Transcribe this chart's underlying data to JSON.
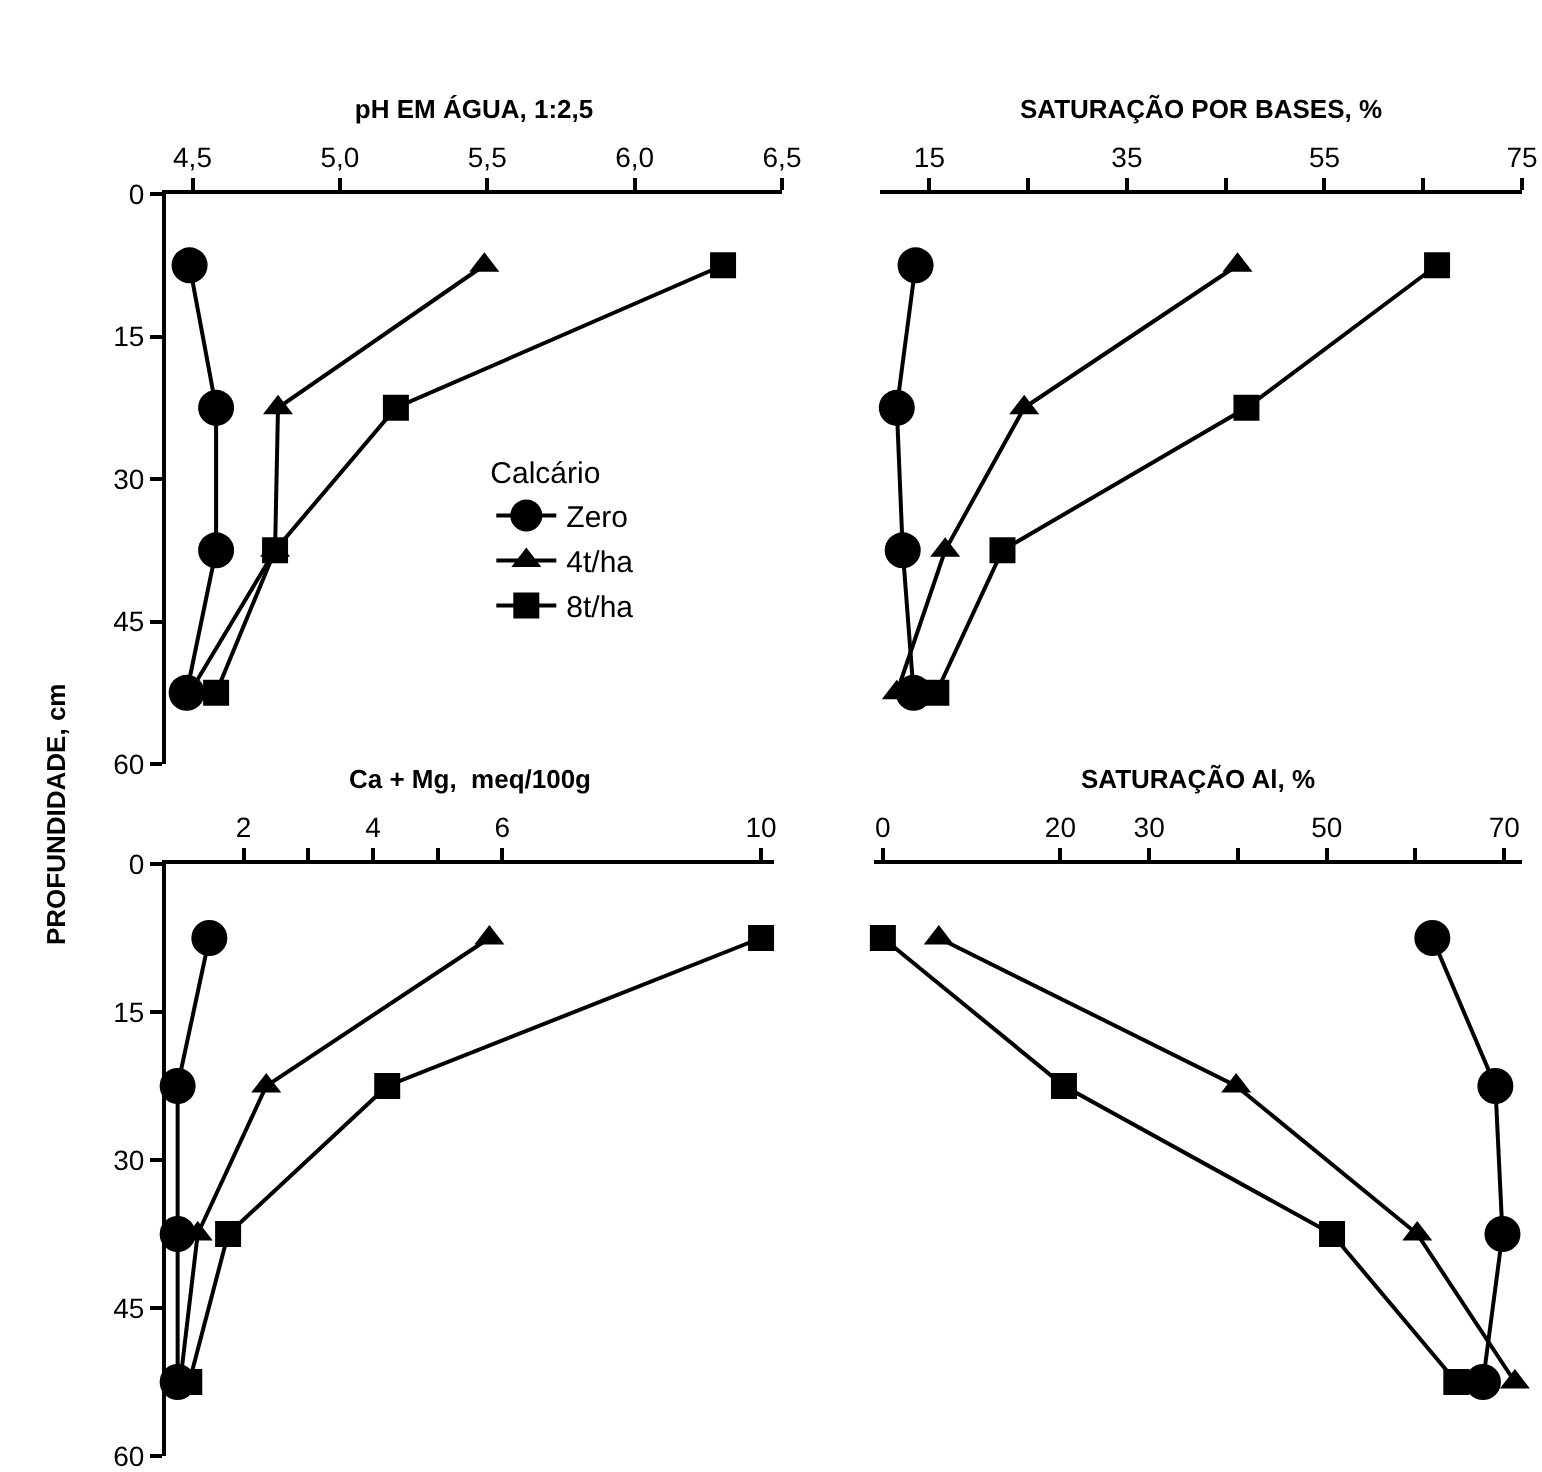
{
  "chart_data": [
    {
      "type": "line",
      "xlabel": "pH EM ÁGUA, 1:2,5",
      "ylabel": "PROFUNDIDADE, cm",
      "legend": "bottom right",
      "legend_title": "Calcário",
      "line_style": "solid",
      "xlim": [
        4.41,
        6.5
      ],
      "xticks": [
        {
          "value": 4.5,
          "label": "4,5"
        },
        {
          "value": 5.0,
          "label": "5,0"
        },
        {
          "value": 5.5,
          "label": "5,5"
        },
        {
          "value": 6.0,
          "label": "6,0"
        },
        {
          "value": 6.5,
          "label": "6,5"
        }
      ],
      "ylim": [
        60,
        0
      ],
      "yticks": [
        0,
        15,
        30,
        45,
        60
      ],
      "series": [
        {
          "name": "Zero",
          "color": "#000000",
          "marker": "circle",
          "x": [
            4.49,
            4.58,
            4.58,
            4.48
          ],
          "values": [
            7.5,
            22.5,
            37.5,
            52.5
          ]
        },
        {
          "name": "4t/ha",
          "color": "#000000",
          "marker": "triangle",
          "x": [
            5.49,
            4.79,
            4.78,
            4.49
          ],
          "values": [
            7.5,
            22.5,
            37.5,
            52.5
          ]
        },
        {
          "name": "8t/ha",
          "color": "#000000",
          "marker": "square",
          "x": [
            6.3,
            5.19,
            4.78,
            4.58
          ],
          "values": [
            7.5,
            22.5,
            37.5,
            52.5
          ]
        }
      ]
    },
    {
      "type": "line",
      "xlabel": "SATURAÇÃO POR BASES, %",
      "tick_labels": "x",
      "line_style": "solid",
      "xlim": [
        10,
        75
      ],
      "xticks": [
        15,
        {
          "value": 25,
          "label": null
        },
        35,
        {
          "value": 45,
          "label": null
        },
        55,
        {
          "value": 65,
          "label": null
        },
        75
      ],
      "ylim": [
        60,
        0
      ],
      "series": [
        {
          "color": "#000000",
          "marker": "circle",
          "x": [
            13.6,
            11.7,
            12.3,
            13.4
          ],
          "values": [
            7.5,
            22.5,
            37.5,
            52.5
          ]
        },
        {
          "color": "#000000",
          "marker": "triangle",
          "x": [
            46.2,
            24.6,
            16.6,
            11.7
          ],
          "values": [
            7.5,
            22.5,
            37.5,
            52.5
          ]
        },
        {
          "color": "#000000",
          "marker": "square",
          "x": [
            66.4,
            47.1,
            22.4,
            15.7
          ],
          "values": [
            7.5,
            22.5,
            37.5,
            52.5
          ]
        }
      ]
    },
    {
      "type": "line",
      "xlabel": "Ca + Mg,  meq/100g",
      "line_style": "solid",
      "xlim": [
        0.8,
        10.2
      ],
      "xticks": [
        2,
        {
          "value": 3,
          "label": null
        },
        4,
        {
          "value": 5,
          "label": null
        },
        6,
        10
      ],
      "ylim": [
        60,
        0
      ],
      "yticks": [
        0,
        15,
        30,
        45,
        60
      ],
      "series": [
        {
          "color": "#000000",
          "marker": "circle",
          "x": [
            1.47,
            0.98,
            0.98,
            0.98
          ],
          "values": [
            7.5,
            22.5,
            37.5,
            52.5
          ]
        },
        {
          "color": "#000000",
          "marker": "triangle",
          "x": [
            5.8,
            2.35,
            1.29,
            1.02
          ],
          "values": [
            7.5,
            22.5,
            37.5,
            52.5
          ]
        },
        {
          "color": "#000000",
          "marker": "square",
          "x": [
            10,
            4.22,
            1.76,
            1.16
          ],
          "values": [
            7.5,
            22.5,
            37.5,
            52.5
          ]
        }
      ]
    },
    {
      "type": "line",
      "xlabel": "SATURAÇÃO Al, %",
      "tick_labels": "x",
      "line_style": "solid",
      "xlim": [
        -1,
        72
      ],
      "xticks": [
        0,
        20,
        30,
        {
          "value": 40,
          "label": null
        },
        50,
        {
          "value": 60,
          "label": null
        },
        70
      ],
      "ylim": [
        60,
        0
      ],
      "series": [
        {
          "color": "#000000",
          "marker": "circle",
          "x": [
            61.9,
            69,
            69.8,
            67.6
          ],
          "values": [
            7.5,
            22.5,
            37.5,
            52.5
          ]
        },
        {
          "color": "#000000",
          "marker": "triangle",
          "x": [
            6.3,
            39.8,
            60.2,
            71.2
          ],
          "values": [
            7.5,
            22.5,
            37.5,
            52.5
          ]
        },
        {
          "color": "#000000",
          "marker": "square",
          "x": [
            0,
            20.4,
            50.6,
            64.6
          ],
          "values": [
            7.5,
            22.5,
            37.5,
            52.5
          ]
        }
      ]
    }
  ]
}
